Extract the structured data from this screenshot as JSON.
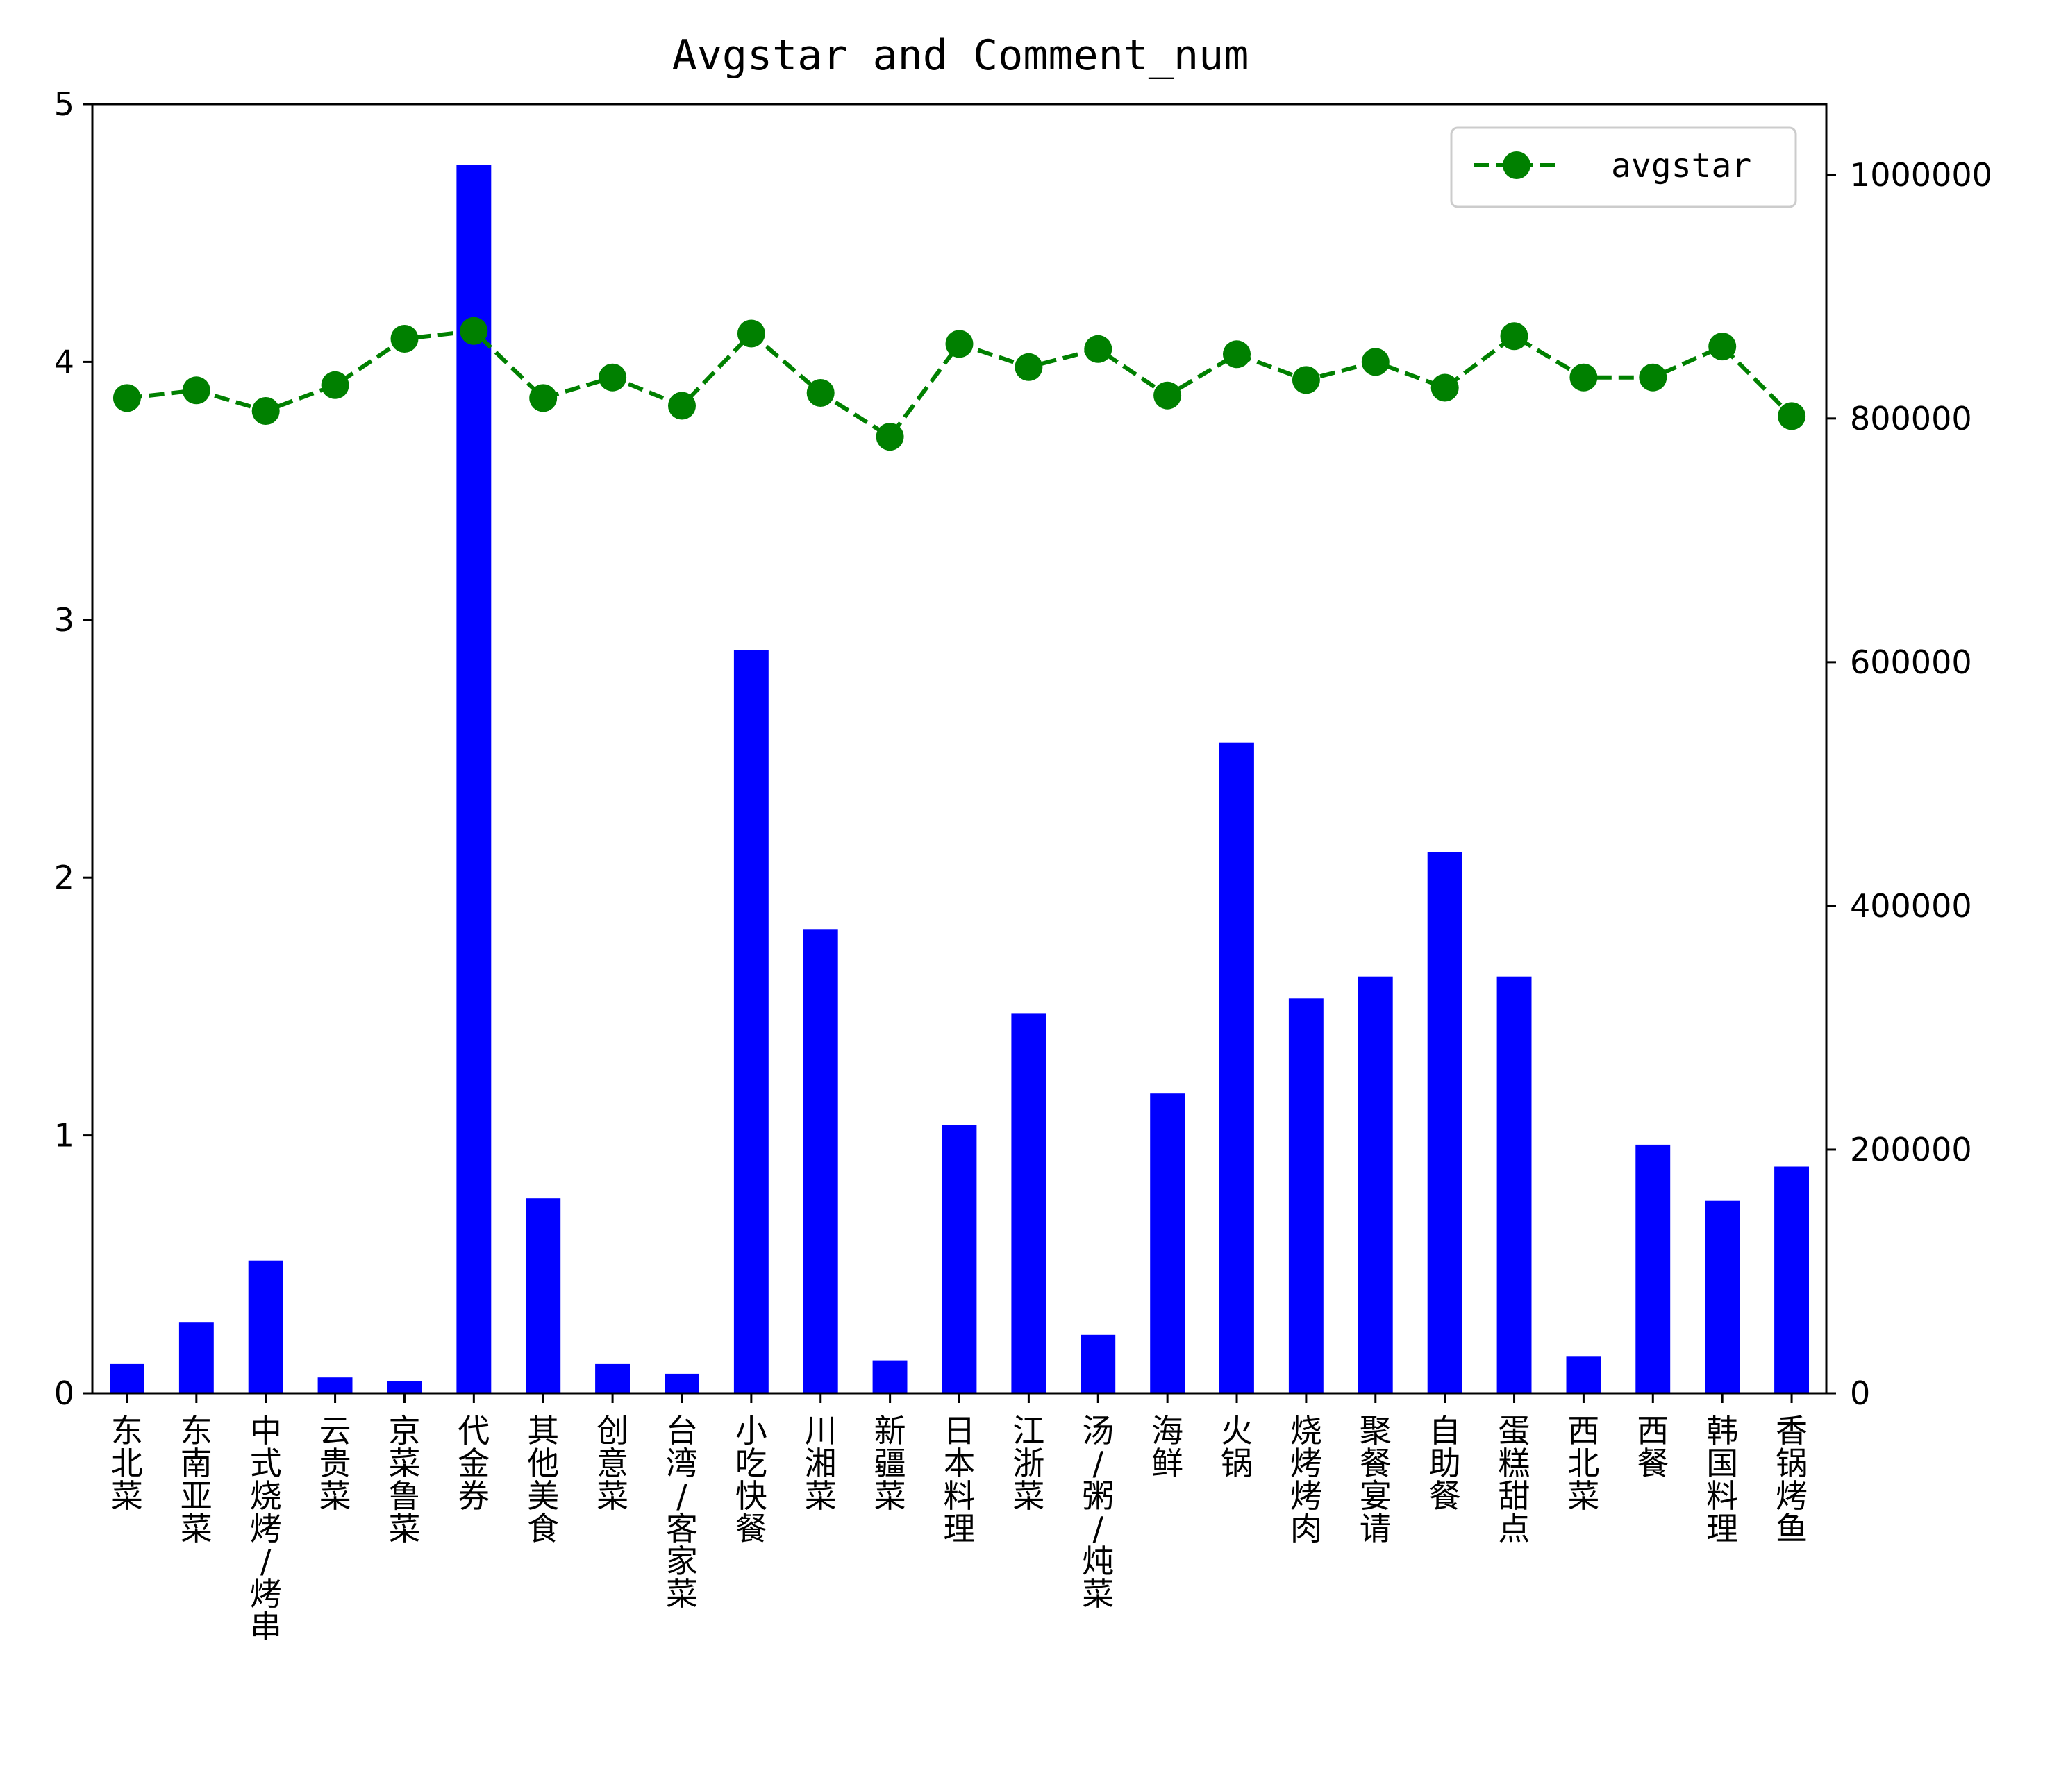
{
  "chart_data": {
    "type": "bar",
    "title": "Avgstar and Comment_num",
    "categories": [
      "东北菜",
      "东南亚菜",
      "中式烧烤/烤串",
      "云贵菜",
      "京菜鲁菜",
      "代金券",
      "其他美食",
      "创意菜",
      "台湾/客家菜",
      "小吃快餐",
      "川湘菜",
      "新疆菜",
      "日本料理",
      "江浙菜",
      "汤/粥/炖菜",
      "海鲜",
      "火锅",
      "烧烤烤肉",
      "聚餐宴请",
      "自助餐",
      "蛋糕甜点",
      "西北菜",
      "西餐",
      "韩国料理",
      "香锅烤鱼"
    ],
    "series": [
      {
        "axis": "right",
        "kind": "bar",
        "color": "#0000ff",
        "values": [
          24000,
          58000,
          109000,
          13000,
          10000,
          1008000,
          160000,
          24000,
          16000,
          610000,
          381000,
          27000,
          220000,
          312000,
          48000,
          246000,
          534000,
          324000,
          342000,
          444000,
          342000,
          30000,
          204000,
          158000,
          186000
        ]
      },
      {
        "name": "avgstar",
        "axis": "left",
        "kind": "line",
        "color": "#008000",
        "line_style": "dashed",
        "marker": "circle",
        "values": [
          3.86,
          3.89,
          3.81,
          3.91,
          4.09,
          4.12,
          3.86,
          3.94,
          3.83,
          4.11,
          3.88,
          3.71,
          4.07,
          3.98,
          4.05,
          3.87,
          4.03,
          3.93,
          4.0,
          3.9,
          4.1,
          3.94,
          3.94,
          4.06,
          3.79
        ]
      }
    ],
    "left_axis": {
      "ylim": [
        0,
        5
      ],
      "ticks": [
        0,
        1,
        2,
        3,
        4,
        5
      ],
      "tick_labels": [
        "0",
        "1",
        "2",
        "3",
        "4",
        "5"
      ]
    },
    "right_axis": {
      "ylim": [
        0,
        1058000
      ],
      "ticks": [
        0,
        200000,
        400000,
        600000,
        800000,
        1000000
      ],
      "tick_labels": [
        "0",
        "200000",
        "400000",
        "600000",
        "800000",
        "1000000"
      ]
    },
    "legend": {
      "placement": "top-right",
      "entries": [
        "avgstar"
      ]
    },
    "grid": false,
    "x_tick_label_orientation": "vertical"
  }
}
